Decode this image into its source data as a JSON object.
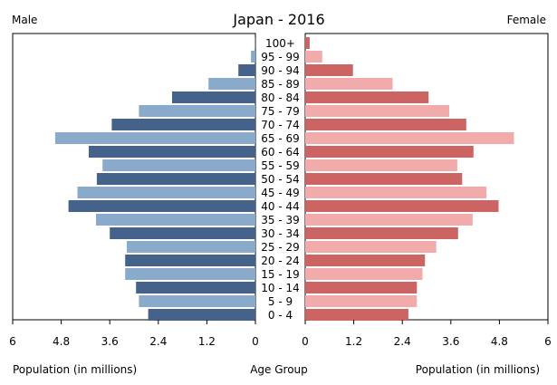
{
  "chart_data": {
    "type": "bar",
    "title": "Japan - 2016",
    "left_header": "Male",
    "right_header": "Female",
    "xlabel_left": "Population (in millions)",
    "xlabel_center": "Age Group",
    "xlabel_right": "Population (in millions)",
    "x_range": [
      0,
      6
    ],
    "x_ticks": [
      "6",
      "4.8",
      "3.6",
      "2.4",
      "1.2",
      "0",
      "0",
      "1.2",
      "2.4",
      "3.6",
      "4.8",
      "6"
    ],
    "categories": [
      "100+",
      "95 - 99",
      "90 - 94",
      "85 - 89",
      "80 - 84",
      "75 - 79",
      "70 - 74",
      "65 - 69",
      "60 - 64",
      "55 - 59",
      "50 - 54",
      "45 - 49",
      "40 - 44",
      "35 - 39",
      "30 - 34",
      "25 - 29",
      "20 - 24",
      "15 - 19",
      "10 - 14",
      "5 - 9",
      "0 - 4"
    ],
    "series": [
      {
        "name": "Male",
        "values": [
          0.01,
          0.11,
          0.42,
          1.16,
          2.06,
          2.88,
          3.55,
          4.95,
          4.12,
          3.78,
          3.92,
          4.4,
          4.62,
          3.94,
          3.6,
          3.18,
          3.22,
          3.22,
          2.95,
          2.88,
          2.65
        ]
      },
      {
        "name": "Female",
        "values": [
          0.11,
          0.42,
          1.18,
          2.16,
          3.05,
          3.56,
          3.98,
          5.16,
          4.16,
          3.76,
          3.88,
          4.48,
          4.78,
          4.14,
          3.78,
          3.24,
          2.96,
          2.9,
          2.76,
          2.76,
          2.55
        ]
      }
    ],
    "colors": {
      "male_dark": "#44628a",
      "male_light": "#8aaacc",
      "female_dark": "#cc6464",
      "female_light": "#f2abab"
    }
  }
}
